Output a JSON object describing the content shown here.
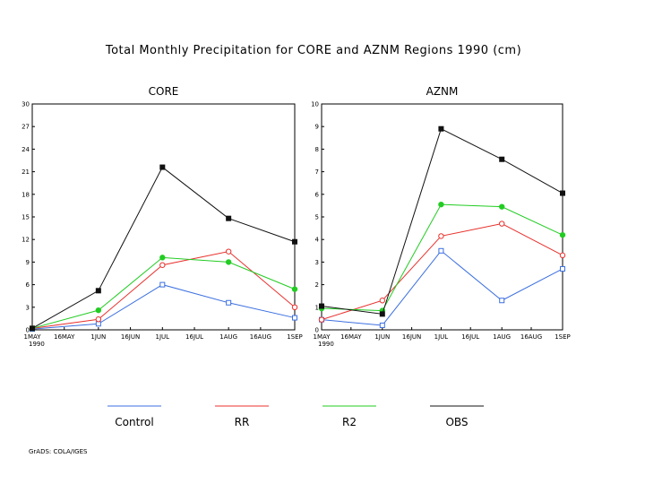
{
  "title": "Total Monthly Precipitation for CORE and AZNM Regions 1990 (cm)",
  "credit": "GrADS: COLA/IGES",
  "legend": [
    {
      "name": "Control",
      "color": "#3b6fe0"
    },
    {
      "name": "RR",
      "color": "#e8302c"
    },
    {
      "name": "R2",
      "color": "#22cc22"
    },
    {
      "name": "OBS",
      "color": "#111111"
    }
  ],
  "chart_data": [
    {
      "type": "line",
      "title": "CORE",
      "x_ticks": [
        "1MAY",
        "16MAY",
        "1JUN",
        "16JUN",
        "1JUL",
        "16JUL",
        "1AUG",
        "16AUG",
        "1SEP"
      ],
      "x_year_label": "1990",
      "x_points": [
        "1MAY",
        "1JUN",
        "1JUL",
        "1AUG",
        "1SEP"
      ],
      "ylim": [
        0,
        30
      ],
      "y_ticks": [
        "0",
        "3",
        "6",
        "9",
        "12",
        "15",
        "18",
        "21",
        "24",
        "27",
        "30"
      ],
      "series": [
        {
          "name": "Control",
          "marker": "open-square",
          "values": [
            0.1,
            0.8,
            6.0,
            3.6,
            1.6
          ]
        },
        {
          "name": "RR",
          "marker": "open-circle",
          "values": [
            0.2,
            1.4,
            8.6,
            10.4,
            3.0
          ]
        },
        {
          "name": "R2",
          "marker": "filled-circle",
          "values": [
            0.2,
            2.6,
            9.6,
            9.0,
            5.4
          ]
        },
        {
          "name": "OBS",
          "marker": "filled-square",
          "values": [
            0.2,
            5.2,
            21.6,
            14.8,
            11.7
          ]
        }
      ]
    },
    {
      "type": "line",
      "title": "AZNM",
      "x_ticks": [
        "1MAY",
        "16MAY",
        "1JUN",
        "16JUN",
        "1JUL",
        "16JUL",
        "1AUG",
        "16AUG",
        "1SEP"
      ],
      "x_year_label": "1990",
      "x_points": [
        "1MAY",
        "1JUN",
        "1JUL",
        "1AUG",
        "1SEP"
      ],
      "ylim": [
        0,
        10
      ],
      "y_ticks": [
        "0",
        "1",
        "2",
        "3",
        "4",
        "5",
        "6",
        "7",
        "8",
        "9",
        "10"
      ],
      "series": [
        {
          "name": "Control",
          "marker": "open-square",
          "values": [
            0.45,
            0.2,
            3.5,
            1.3,
            2.7
          ]
        },
        {
          "name": "RR",
          "marker": "open-circle",
          "values": [
            0.45,
            1.3,
            4.15,
            4.7,
            3.3
          ]
        },
        {
          "name": "R2",
          "marker": "filled-circle",
          "values": [
            0.95,
            0.85,
            5.55,
            5.45,
            4.2
          ]
        },
        {
          "name": "OBS",
          "marker": "filled-square",
          "values": [
            1.05,
            0.7,
            8.9,
            7.55,
            6.05
          ]
        }
      ]
    }
  ]
}
